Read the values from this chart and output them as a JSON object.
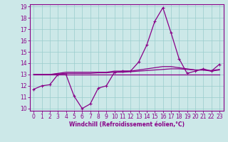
{
  "xlabel": "Windchill (Refroidissement éolien,°C)",
  "bg_color": "#cce8e8",
  "grid_color": "#99cccc",
  "line_color": "#880088",
  "spine_color": "#880088",
  "ylim": [
    9.8,
    19.2
  ],
  "xlim": [
    -0.5,
    23.5
  ],
  "yticks": [
    10,
    11,
    12,
    13,
    14,
    15,
    16,
    17,
    18,
    19
  ],
  "xticks": [
    0,
    1,
    2,
    3,
    4,
    5,
    6,
    7,
    8,
    9,
    10,
    11,
    12,
    13,
    14,
    15,
    16,
    17,
    18,
    19,
    20,
    21,
    22,
    23
  ],
  "series1": [
    11.7,
    12.0,
    12.1,
    13.0,
    13.0,
    11.1,
    10.0,
    10.4,
    11.8,
    12.0,
    13.2,
    13.3,
    13.3,
    14.1,
    15.6,
    17.7,
    18.9,
    16.7,
    14.4,
    13.1,
    13.3,
    13.5,
    13.3,
    13.9
  ],
  "series2": [
    13.0,
    13.0,
    13.0,
    13.0,
    13.0,
    13.0,
    13.0,
    13.0,
    13.0,
    13.0,
    13.0,
    13.0,
    13.0,
    13.0,
    13.0,
    13.0,
    13.0,
    13.0,
    13.0,
    13.0,
    13.0,
    13.0,
    13.0,
    13.0
  ],
  "series3": [
    13.0,
    13.0,
    13.0,
    13.1,
    13.2,
    13.2,
    13.2,
    13.2,
    13.2,
    13.2,
    13.3,
    13.3,
    13.3,
    13.4,
    13.5,
    13.6,
    13.7,
    13.7,
    13.6,
    13.5,
    13.4,
    13.4,
    13.3,
    13.4
  ],
  "series4": [
    13.0,
    13.0,
    13.0,
    13.05,
    13.1,
    13.1,
    13.1,
    13.1,
    13.15,
    13.15,
    13.2,
    13.2,
    13.25,
    13.3,
    13.35,
    13.4,
    13.45,
    13.5,
    13.5,
    13.45,
    13.4,
    13.4,
    13.35,
    13.45
  ],
  "tick_fontsize": 5.5,
  "xlabel_fontsize": 5.5
}
